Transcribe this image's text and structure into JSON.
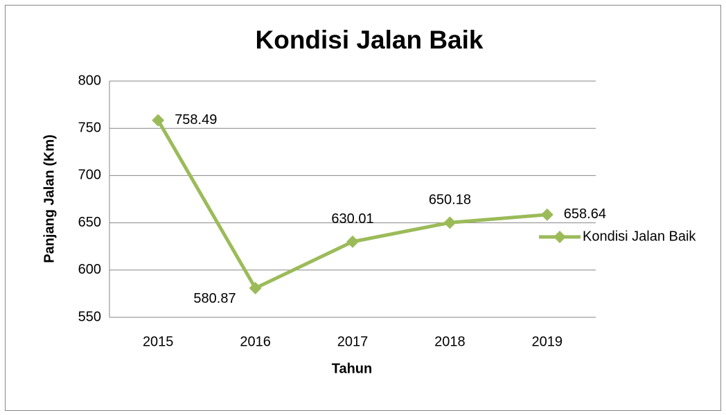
{
  "chart_data": {
    "type": "line",
    "title": "Kondisi Jalan Baik",
    "x_label": "Tahun",
    "y_label": "Panjang Jalan (Km)",
    "categories": [
      "2015",
      "2016",
      "2017",
      "2018",
      "2019"
    ],
    "series": [
      {
        "name": "Kondisi Jalan Baik",
        "color": "#9bbb59",
        "values": [
          758.49,
          580.87,
          630.01,
          650.18,
          658.64
        ]
      }
    ],
    "ylim": [
      550,
      800
    ],
    "yticks": [
      550,
      600,
      650,
      700,
      750,
      800
    ],
    "grid": true,
    "legend": "right"
  }
}
